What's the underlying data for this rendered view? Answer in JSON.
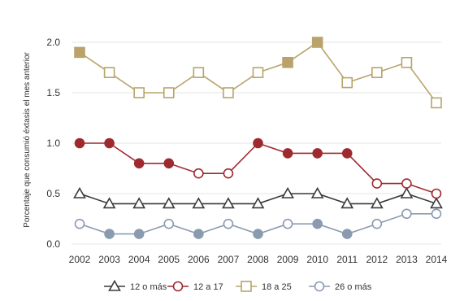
{
  "chart_data": {
    "type": "line",
    "ylabel": "Porcentaje que consumió éxtasis el mes anterior",
    "xlabel": "",
    "ylim": [
      0,
      2.0
    ],
    "yticks": [
      "0.0",
      "0.5",
      "1.0",
      "1.5",
      "2.0"
    ],
    "categories": [
      "2002",
      "2003",
      "2004",
      "2005",
      "2006",
      "2007",
      "2008",
      "2009",
      "2010",
      "2011",
      "2012",
      "2013",
      "2014"
    ],
    "legend_position": "bottom",
    "series": [
      {
        "name": "12 o más",
        "marker": "triangle",
        "color": "#3a3a3a",
        "values": [
          0.5,
          0.4,
          0.4,
          0.4,
          0.4,
          0.4,
          0.4,
          0.5,
          0.5,
          0.4,
          0.4,
          0.5,
          0.4
        ]
      },
      {
        "name": "12 a 17",
        "marker": "circle",
        "color": "#9e2a2f",
        "values": [
          1.0,
          1.0,
          0.8,
          0.8,
          0.7,
          0.7,
          1.0,
          0.9,
          0.9,
          0.9,
          0.6,
          0.6,
          0.5
        ]
      },
      {
        "name": "18 a 25",
        "marker": "square",
        "color": "#b9a36b",
        "values": [
          1.9,
          1.7,
          1.5,
          1.5,
          1.7,
          1.5,
          1.7,
          1.8,
          2.0,
          1.6,
          1.7,
          1.8,
          1.4
        ]
      },
      {
        "name": "26 o más",
        "marker": "circle",
        "color": "#8a9bb0",
        "values": [
          0.2,
          0.1,
          0.1,
          0.2,
          0.1,
          0.2,
          0.1,
          0.2,
          0.2,
          0.1,
          0.2,
          0.3,
          0.3
        ]
      }
    ],
    "filled_markers": [
      {
        "series": "18 a 25",
        "indices": [
          0,
          7,
          8
        ]
      },
      {
        "series": "12 a 17",
        "indices": [
          0,
          1,
          2,
          3,
          6,
          7,
          8,
          9
        ]
      },
      {
        "series": "26 o más",
        "indices": [
          1,
          2,
          4,
          6,
          8,
          9
        ]
      }
    ]
  }
}
